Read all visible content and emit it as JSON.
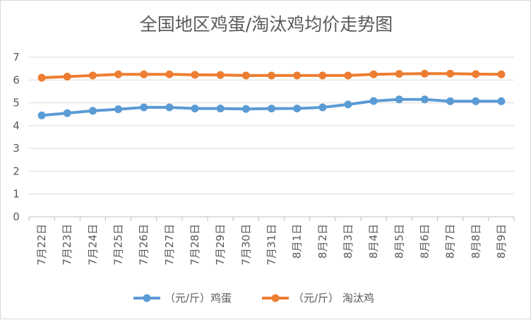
{
  "chart_data": {
    "type": "line",
    "title": "全国地区鸡蛋/淘汰鸡均价走势图",
    "xlabel": "",
    "ylabel": "",
    "ylim": [
      0,
      7
    ],
    "yticks": [
      0,
      1,
      2,
      3,
      4,
      5,
      6,
      7
    ],
    "grid": true,
    "legend_position": "bottom",
    "categories": [
      "7月22日",
      "7月23日",
      "7月24日",
      "7月25日",
      "7月26日",
      "7月27日",
      "7月28日",
      "7月29日",
      "7月30日",
      "7月31日",
      "8月1日",
      "8月2日",
      "8月3日",
      "8月4日",
      "8月5日",
      "8月6日",
      "8月7日",
      "8月8日",
      "8月9日"
    ],
    "series": [
      {
        "name": "（元/斤）鸡蛋",
        "color": "#5b9bd5",
        "values": [
          4.45,
          4.55,
          4.65,
          4.72,
          4.8,
          4.8,
          4.75,
          4.75,
          4.73,
          4.75,
          4.75,
          4.8,
          4.93,
          5.08,
          5.15,
          5.15,
          5.07,
          5.07,
          5.07
        ]
      },
      {
        "name": "（元/斤） 淘汰鸡",
        "color": "#ed7d31",
        "values": [
          6.1,
          6.15,
          6.2,
          6.25,
          6.25,
          6.25,
          6.23,
          6.22,
          6.2,
          6.2,
          6.2,
          6.2,
          6.2,
          6.25,
          6.27,
          6.28,
          6.28,
          6.26,
          6.25
        ]
      }
    ]
  }
}
